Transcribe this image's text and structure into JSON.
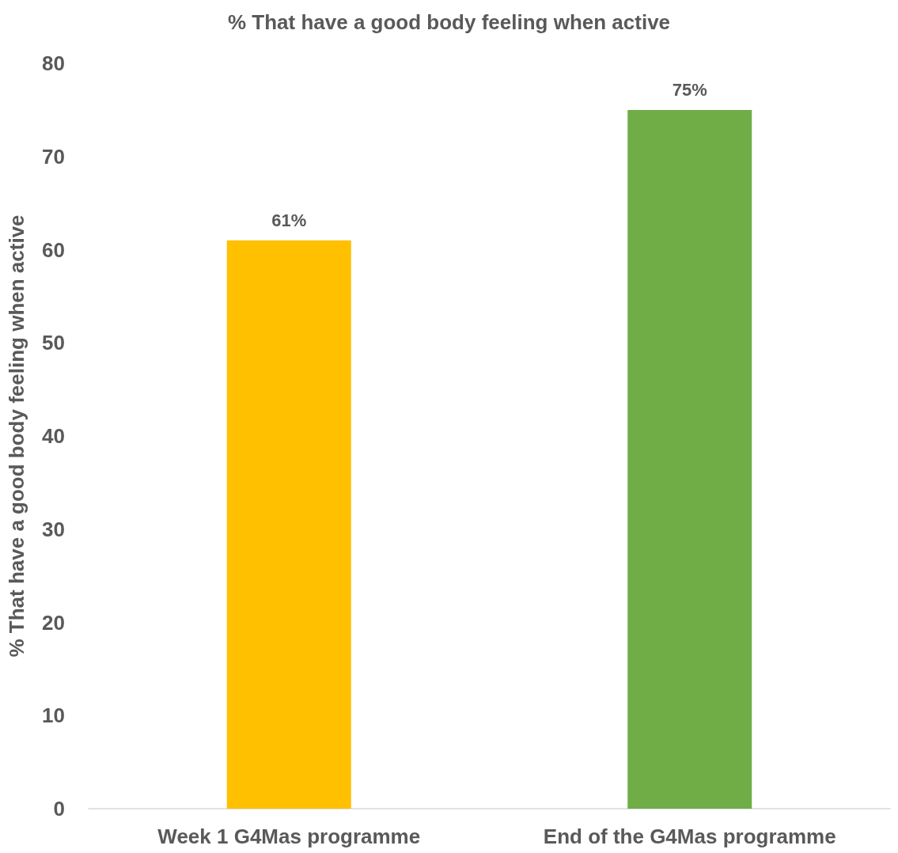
{
  "chart_data": {
    "type": "bar",
    "title": "% That have a good body feeling when active",
    "ylabel": "% That have a good body feeling when active",
    "categories": [
      "Week 1 G4Mas programme",
      "End of the G4Mas programme"
    ],
    "values": [
      61,
      75
    ],
    "colors": [
      "#ffc000",
      "#70ad47"
    ],
    "value_labels": [
      "61%",
      "75%"
    ],
    "ylim": [
      0,
      80
    ],
    "yticks": [
      0,
      10,
      20,
      30,
      40,
      50,
      60,
      70,
      80
    ]
  }
}
